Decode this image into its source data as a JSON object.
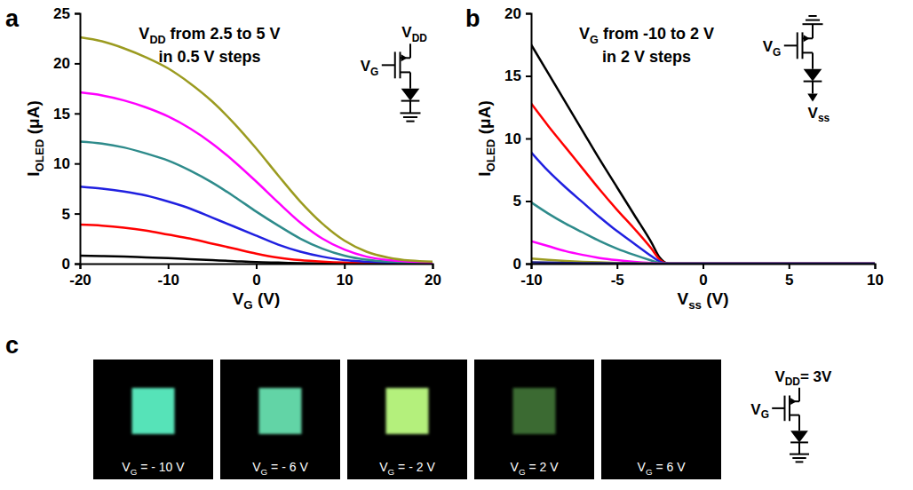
{
  "chart_data": [
    {
      "type": "line",
      "panel_label": "a",
      "annotation": [
        "VDD from 2.5 to 5 V",
        "in 0.5 V steps"
      ],
      "circuit": {
        "top": "VDD",
        "gate": "VG"
      },
      "x_label": "VG (V)",
      "y_label": "IOLED (μA)",
      "x": [
        -20,
        -17.5,
        -15,
        -12.5,
        -10,
        -7.5,
        -5,
        -2.5,
        0,
        2.5,
        5,
        7.5,
        10,
        12.5,
        15,
        17.5,
        20
      ],
      "xlim": [
        -20,
        20
      ],
      "xticks": [
        -20,
        -10,
        0,
        10,
        20
      ],
      "ylim": [
        0,
        25
      ],
      "yticks": [
        0,
        5,
        10,
        15,
        20,
        25
      ],
      "series": [
        {
          "color": "#000000",
          "values": [
            0.8,
            0.75,
            0.7,
            0.62,
            0.55,
            0.45,
            0.35,
            0.25,
            0.15,
            0.1,
            0.05,
            0.03,
            0.02,
            0.01,
            0.01,
            0,
            0
          ]
        },
        {
          "color": "#ff0000",
          "values": [
            3.9,
            3.8,
            3.6,
            3.3,
            2.9,
            2.5,
            2.0,
            1.5,
            1.0,
            0.6,
            0.35,
            0.2,
            0.1,
            0.05,
            0.03,
            0.02,
            0.02
          ]
        },
        {
          "color": "#2020e0",
          "values": [
            7.7,
            7.5,
            7.2,
            6.8,
            6.2,
            5.5,
            4.6,
            3.7,
            2.8,
            1.9,
            1.2,
            0.7,
            0.35,
            0.2,
            0.1,
            0.05,
            0.05
          ]
        },
        {
          "color": "#2e8b8b",
          "values": [
            12.2,
            12.0,
            11.6,
            11.0,
            10.3,
            9.3,
            8.1,
            6.7,
            5.2,
            3.8,
            2.5,
            1.5,
            0.8,
            0.4,
            0.2,
            0.1,
            0.1
          ]
        },
        {
          "color": "#ff00ff",
          "values": [
            17.1,
            16.8,
            16.3,
            15.6,
            14.7,
            13.5,
            12.0,
            10.2,
            8.2,
            6.1,
            4.1,
            2.5,
            1.4,
            0.7,
            0.35,
            0.2,
            0.1
          ]
        },
        {
          "color": "#9b9b20",
          "values": [
            22.6,
            22.2,
            21.5,
            20.6,
            19.5,
            18.0,
            16.2,
            14.0,
            11.5,
            8.8,
            6.2,
            4.0,
            2.3,
            1.2,
            0.6,
            0.3,
            0.2
          ]
        }
      ]
    },
    {
      "type": "line",
      "panel_label": "b",
      "annotation": [
        "VG from -10 to 2 V",
        "in 2 V steps"
      ],
      "circuit": {
        "gate": "VG",
        "bottom": "Vss"
      },
      "x_label": "Vss (V)",
      "y_label": "IOLED (μA)",
      "x": [
        -10,
        -9,
        -8,
        -7,
        -6,
        -5,
        -4,
        -3,
        -2.5,
        -2,
        0,
        2.5,
        5,
        7.5,
        10
      ],
      "xlim": [
        -10,
        10
      ],
      "xticks": [
        -10,
        -5,
        0,
        5,
        10
      ],
      "ylim": [
        0,
        20
      ],
      "yticks": [
        0,
        5,
        10,
        15,
        20
      ],
      "series": [
        {
          "color": "#000000",
          "values": [
            17.5,
            15.2,
            12.9,
            10.6,
            8.3,
            6.1,
            3.9,
            1.7,
            0.45,
            0,
            0,
            0,
            0,
            0,
            0
          ]
        },
        {
          "color": "#ff0000",
          "values": [
            12.8,
            11.0,
            9.3,
            7.6,
            5.9,
            4.3,
            2.8,
            1.2,
            0.3,
            0,
            0,
            0,
            0,
            0,
            0
          ]
        },
        {
          "color": "#2020e0",
          "values": [
            8.9,
            7.4,
            6.1,
            4.9,
            3.7,
            2.6,
            1.6,
            0.6,
            0.15,
            0,
            0,
            0,
            0,
            0,
            0
          ]
        },
        {
          "color": "#2e8b8b",
          "values": [
            4.9,
            4.0,
            3.2,
            2.5,
            1.8,
            1.2,
            0.7,
            0.25,
            0.05,
            0,
            0,
            0,
            0,
            0,
            0
          ]
        },
        {
          "color": "#ff00ff",
          "values": [
            1.8,
            1.4,
            1.0,
            0.7,
            0.45,
            0.28,
            0.15,
            0.05,
            0.01,
            0,
            0,
            0,
            0,
            0,
            0
          ]
        },
        {
          "color": "#9b9b20",
          "values": [
            0.4,
            0.3,
            0.22,
            0.15,
            0.1,
            0.06,
            0.03,
            0.01,
            0,
            0,
            0,
            0,
            0,
            0,
            0
          ]
        },
        {
          "color": "#1a1a80",
          "values": [
            0.1,
            0.08,
            0.06,
            0.04,
            0.03,
            0.02,
            0.01,
            0,
            0,
            0,
            0,
            0,
            0,
            0,
            0
          ]
        }
      ]
    }
  ],
  "panel_c": {
    "panel_label": "c",
    "circuit": {
      "top": "VDD= 3V",
      "gate": "VG"
    },
    "photos": [
      {
        "label": "VG = - 10 V",
        "color": "#56e3b8"
      },
      {
        "label": "VG = - 6 V",
        "color": "#62d4a6"
      },
      {
        "label": "VG = - 2 V",
        "color": "#b4f07c"
      },
      {
        "label": "VG = 2 V",
        "color": "#3a6a30"
      },
      {
        "label": "VG = 6 V",
        "color": "#000000"
      }
    ]
  }
}
